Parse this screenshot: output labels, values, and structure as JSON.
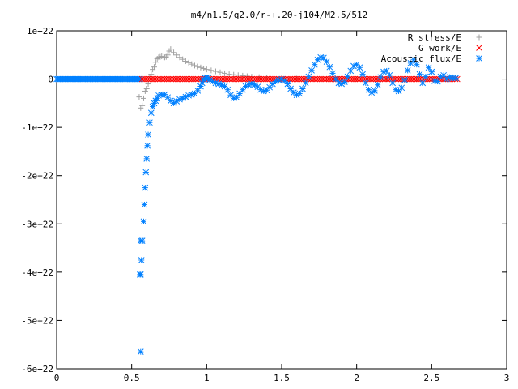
{
  "chart_data": {
    "type": "scatter",
    "title": "m4/n1.5/q2.0/r-+.20-j104/M2.5/512",
    "xlabel": "",
    "ylabel": "",
    "xlim": [
      0,
      3
    ],
    "ylim": [
      -6e+22,
      1e+22
    ],
    "x_ticks": [
      {
        "value": 0,
        "label": "0"
      },
      {
        "value": 0.5,
        "label": "0.5"
      },
      {
        "value": 1,
        "label": "1"
      },
      {
        "value": 1.5,
        "label": "1.5"
      },
      {
        "value": 2,
        "label": "2"
      },
      {
        "value": 2.5,
        "label": "2.5"
      },
      {
        "value": 3,
        "label": "3"
      }
    ],
    "y_ticks": [
      {
        "value": 1e+22,
        "label": "1e+22"
      },
      {
        "value": 0,
        "label": "0"
      },
      {
        "value": -1e+22,
        "label": "-1e+22"
      },
      {
        "value": -2e+22,
        "label": "-2e+22"
      },
      {
        "value": -3e+22,
        "label": "-3e+22"
      },
      {
        "value": -4e+22,
        "label": "-4e+22"
      },
      {
        "value": -5e+22,
        "label": "-5e+22"
      },
      {
        "value": -6e+22,
        "label": "-6e+22"
      }
    ],
    "grid": false,
    "legend_position": "top-right",
    "series": [
      {
        "name": "R stress/E",
        "marker": "plus",
        "color": "#a0a0a0",
        "points": [
          [
            0.55,
            -3.7e+21
          ],
          [
            0.56,
            -6e+21
          ],
          [
            0.57,
            -5.5e+21
          ],
          [
            0.58,
            -4e+21
          ],
          [
            0.59,
            -2.5e+21
          ],
          [
            0.6,
            -2e+21
          ],
          [
            0.61,
            -1e+21
          ],
          [
            0.62,
            5e+20
          ],
          [
            0.63,
            1e+21
          ],
          [
            0.64,
            2e+21
          ],
          [
            0.65,
            2.5e+21
          ],
          [
            0.66,
            3.5e+21
          ],
          [
            0.67,
            4.2e+21
          ],
          [
            0.68,
            4.5e+21
          ],
          [
            0.69,
            4.6e+21
          ],
          [
            0.7,
            4.7e+21
          ],
          [
            0.71,
            4.6e+21
          ],
          [
            0.72,
            4.5e+21
          ],
          [
            0.73,
            4.6e+21
          ],
          [
            0.74,
            5e+21
          ],
          [
            0.75,
            5.8e+21
          ],
          [
            0.76,
            6.2e+21
          ],
          [
            0.78,
            5.5e+21
          ],
          [
            0.8,
            5e+21
          ],
          [
            0.82,
            4.5e+21
          ],
          [
            0.84,
            4.1e+21
          ],
          [
            0.86,
            3.7e+21
          ],
          [
            0.88,
            3.4e+21
          ],
          [
            0.9,
            3.1e+21
          ],
          [
            0.92,
            2.8e+21
          ],
          [
            0.94,
            2.6e+21
          ],
          [
            0.96,
            2.4e+21
          ],
          [
            0.98,
            2.2e+21
          ],
          [
            1.0,
            2e+21
          ],
          [
            1.03,
            1.8e+21
          ],
          [
            1.06,
            1.6e+21
          ],
          [
            1.09,
            1.4e+21
          ],
          [
            1.12,
            1.2e+21
          ],
          [
            1.15,
            1e+21
          ],
          [
            1.18,
            9e+20
          ],
          [
            1.21,
            8e+20
          ],
          [
            1.24,
            7e+20
          ],
          [
            1.27,
            6e+20
          ],
          [
            1.3,
            5e+20
          ],
          [
            1.35,
            4e+20
          ],
          [
            1.4,
            3e+20
          ],
          [
            1.5,
            2e+20
          ],
          [
            1.6,
            1e+20
          ],
          [
            1.7,
            1e+20
          ],
          [
            1.8,
            0.0
          ],
          [
            2.0,
            0.0
          ],
          [
            2.2,
            0.0
          ],
          [
            2.4,
            0.0
          ],
          [
            2.6,
            0.0
          ]
        ]
      },
      {
        "name": "G work/E",
        "marker": "cross",
        "color": "#ff0000",
        "x_start": 0.57,
        "x_end": 2.67,
        "x_step": 0.012,
        "y_value": 0
      },
      {
        "name": "Acoustic flux/E",
        "marker": "star",
        "color": "#0080ff",
        "baseline_x_start": 0.0,
        "baseline_x_end": 0.56,
        "baseline_x_step": 0.008,
        "baseline_y": 0,
        "points": [
          [
            0.56,
            -5.65e+22
          ],
          [
            0.555,
            -4.05e+22
          ],
          [
            0.56,
            -4.05e+22
          ],
          [
            0.565,
            -3.75e+22
          ],
          [
            0.56,
            -3.35e+22
          ],
          [
            0.57,
            -3.35e+22
          ],
          [
            0.58,
            -2.95e+22
          ],
          [
            0.585,
            -2.6e+22
          ],
          [
            0.59,
            -2.25e+22
          ],
          [
            0.595,
            -1.93e+22
          ],
          [
            0.6,
            -1.65e+22
          ],
          [
            0.605,
            -1.38e+22
          ],
          [
            0.61,
            -1.15e+22
          ],
          [
            0.62,
            -9e+21
          ],
          [
            0.63,
            -7e+21
          ],
          [
            0.64,
            -5.7e+21
          ],
          [
            0.65,
            -5e+21
          ],
          [
            0.66,
            -4.5e+21
          ],
          [
            0.67,
            -4e+21
          ],
          [
            0.68,
            -3.4e+21
          ],
          [
            0.7,
            -3.2e+21
          ],
          [
            0.72,
            -3.2e+21
          ],
          [
            0.74,
            -3.8e+21
          ],
          [
            0.76,
            -4.5e+21
          ],
          [
            0.78,
            -5e+21
          ],
          [
            0.8,
            -4.6e+21
          ],
          [
            0.82,
            -4.2e+21
          ],
          [
            0.84,
            -4e+21
          ],
          [
            0.86,
            -3.7e+21
          ],
          [
            0.88,
            -3.4e+21
          ],
          [
            0.9,
            -3.2e+21
          ],
          [
            0.92,
            -3e+21
          ],
          [
            0.94,
            -2.4e+21
          ],
          [
            0.96,
            -1.5e+21
          ],
          [
            0.97,
            -8e+20
          ],
          [
            0.98,
            -2e+20
          ],
          [
            0.99,
            2e+20
          ],
          [
            1.0,
            3e+20
          ],
          [
            1.01,
            2e+20
          ],
          [
            1.02,
            -2e+20
          ],
          [
            1.04,
            -5e+20
          ],
          [
            1.06,
            -8e+20
          ],
          [
            1.08,
            -1e+21
          ],
          [
            1.1,
            -1.2e+21
          ],
          [
            1.12,
            -1.5e+21
          ],
          [
            1.14,
            -2.2e+21
          ],
          [
            1.16,
            -3.3e+21
          ],
          [
            1.18,
            -4e+21
          ],
          [
            1.2,
            -3.8e+21
          ],
          [
            1.22,
            -3e+21
          ],
          [
            1.24,
            -2.2e+21
          ],
          [
            1.26,
            -1.5e+21
          ],
          [
            1.28,
            -1.2e+21
          ],
          [
            1.3,
            -1e+21
          ],
          [
            1.32,
            -1.2e+21
          ],
          [
            1.34,
            -1.6e+21
          ],
          [
            1.36,
            -2.2e+21
          ],
          [
            1.38,
            -2.5e+21
          ],
          [
            1.4,
            -2.3e+21
          ],
          [
            1.42,
            -1.7e+21
          ],
          [
            1.44,
            -1e+21
          ],
          [
            1.46,
            -5e+20
          ],
          [
            1.48,
            -2e+20
          ],
          [
            1.5,
            0.0
          ],
          [
            1.52,
            -4e+20
          ],
          [
            1.54,
            -1e+21
          ],
          [
            1.56,
            -2e+21
          ],
          [
            1.58,
            -2.8e+21
          ],
          [
            1.6,
            -3.3e+21
          ],
          [
            1.62,
            -3e+21
          ],
          [
            1.64,
            -2e+21
          ],
          [
            1.66,
            -8e+20
          ],
          [
            1.68,
            5e+20
          ],
          [
            1.7,
            1.8e+21
          ],
          [
            1.72,
            3e+21
          ],
          [
            1.74,
            4e+21
          ],
          [
            1.76,
            4.5e+21
          ],
          [
            1.78,
            4.4e+21
          ],
          [
            1.8,
            3.6e+21
          ],
          [
            1.82,
            2.5e+21
          ],
          [
            1.84,
            1.2e+21
          ],
          [
            1.86,
            0.0
          ],
          [
            1.88,
            -8e+20
          ],
          [
            1.9,
            -1e+21
          ],
          [
            1.92,
            -6e+20
          ],
          [
            1.94,
            5e+20
          ],
          [
            1.96,
            1.7e+21
          ],
          [
            1.98,
            2.7e+21
          ],
          [
            2.0,
            3e+21
          ],
          [
            2.02,
            2.4e+21
          ],
          [
            2.04,
            1e+21
          ],
          [
            2.06,
            -8e+20
          ],
          [
            2.08,
            -2.2e+21
          ],
          [
            2.1,
            -2.8e+21
          ],
          [
            2.12,
            -2.4e+21
          ],
          [
            2.14,
            -1.2e+21
          ],
          [
            2.16,
            4e+20
          ],
          [
            2.18,
            1.5e+21
          ],
          [
            2.2,
            1.7e+21
          ],
          [
            2.22,
            8e+20
          ],
          [
            2.24,
            -8e+20
          ],
          [
            2.26,
            -2.2e+21
          ],
          [
            2.28,
            -2.5e+21
          ],
          [
            2.3,
            -1.8e+21
          ],
          [
            2.32,
            -2e+20
          ],
          [
            2.34,
            1.8e+21
          ],
          [
            2.36,
            3.3e+21
          ],
          [
            2.38,
            4e+21
          ],
          [
            2.4,
            3e+21
          ],
          [
            2.42,
            1e+21
          ],
          [
            2.44,
            -8e+20
          ],
          [
            2.46,
            5e+20
          ],
          [
            2.48,
            2.4e+21
          ],
          [
            2.5,
            1.5e+21
          ],
          [
            2.52,
            -4e+20
          ],
          [
            2.54,
            -5e+20
          ],
          [
            2.56,
            5e+20
          ],
          [
            2.58,
            8e+20
          ],
          [
            2.6,
            0.0
          ],
          [
            2.62,
            4e+20
          ],
          [
            2.64,
            2e+20
          ],
          [
            2.66,
            2e+20
          ]
        ]
      }
    ]
  }
}
